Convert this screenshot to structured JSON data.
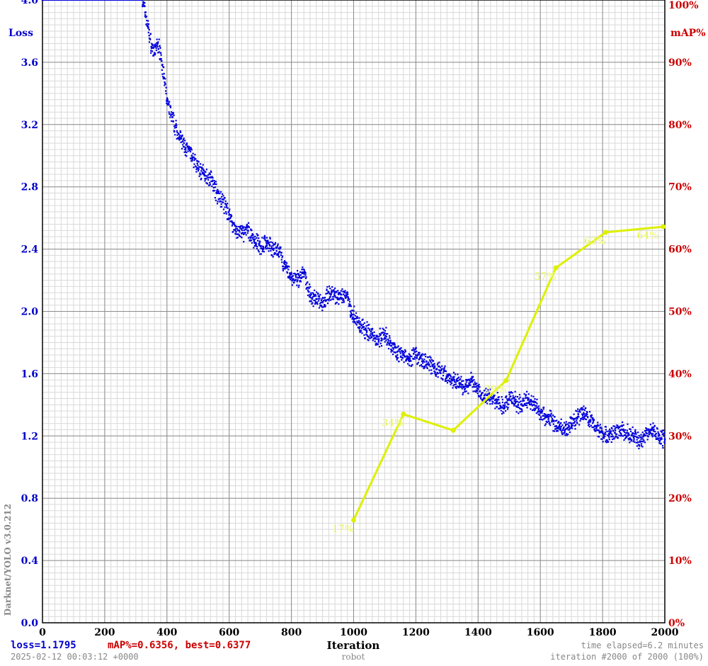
{
  "chart_data": {
    "type": "scatter",
    "xlabel": "Iteration",
    "subtitle": "robot",
    "y_left_label": "Loss",
    "y_right_label": "mAP%",
    "vertical_label": "Darknet/YOLO v3.0.212",
    "xlim": [
      0,
      2000
    ],
    "ylim_left": [
      0,
      4.0
    ],
    "ylim_right": [
      0,
      100
    ],
    "grid": true,
    "x_ticks": [
      "0",
      "200",
      "400",
      "600",
      "800",
      "1000",
      "1200",
      "1400",
      "1600",
      "1800",
      "2000"
    ],
    "y_left_ticks": [
      "0.0",
      "0.4",
      "0.8",
      "1.2",
      "1.6",
      "2.0",
      "2.4",
      "2.8",
      "3.2",
      "3.6",
      "4.0"
    ],
    "y_right_ticks": [
      "0%",
      "10%",
      "20%",
      "30%",
      "40%",
      "50%",
      "60%",
      "70%",
      "80%",
      "90%",
      "100%"
    ],
    "loss_series": {
      "name": "loss",
      "color": "#0000dd",
      "x": [
        0,
        320,
        330,
        340,
        350,
        360,
        370,
        380,
        390,
        400,
        420,
        440,
        460,
        480,
        500,
        520,
        540,
        560,
        580,
        600,
        620,
        640,
        660,
        680,
        700,
        720,
        740,
        760,
        780,
        800,
        820,
        840,
        860,
        880,
        900,
        920,
        940,
        960,
        980,
        990,
        1000,
        1020,
        1040,
        1060,
        1080,
        1100,
        1120,
        1140,
        1160,
        1180,
        1200,
        1220,
        1240,
        1260,
        1280,
        1300,
        1320,
        1340,
        1360,
        1380,
        1400,
        1420,
        1440,
        1460,
        1480,
        1500,
        1520,
        1540,
        1560,
        1580,
        1600,
        1620,
        1640,
        1660,
        1680,
        1700,
        1720,
        1740,
        1760,
        1780,
        1800,
        1820,
        1840,
        1860,
        1880,
        1900,
        1920,
        1940,
        1960,
        1980,
        2000
      ],
      "values": [
        4.0,
        4.0,
        3.92,
        3.82,
        3.7,
        3.66,
        3.72,
        3.66,
        3.5,
        3.35,
        3.22,
        3.12,
        3.05,
        3.0,
        2.92,
        2.88,
        2.86,
        2.76,
        2.7,
        2.62,
        2.52,
        2.5,
        2.52,
        2.46,
        2.42,
        2.44,
        2.4,
        2.38,
        2.28,
        2.22,
        2.2,
        2.25,
        2.1,
        2.08,
        2.06,
        2.12,
        2.1,
        2.08,
        2.12,
        2.0,
        1.98,
        1.9,
        1.88,
        1.85,
        1.82,
        1.86,
        1.78,
        1.74,
        1.72,
        1.7,
        1.72,
        1.68,
        1.66,
        1.64,
        1.62,
        1.58,
        1.56,
        1.54,
        1.52,
        1.55,
        1.5,
        1.46,
        1.45,
        1.42,
        1.38,
        1.44,
        1.42,
        1.4,
        1.44,
        1.4,
        1.36,
        1.32,
        1.3,
        1.26,
        1.24,
        1.28,
        1.32,
        1.34,
        1.3,
        1.26,
        1.22,
        1.2,
        1.22,
        1.24,
        1.22,
        1.2,
        1.16,
        1.22,
        1.24,
        1.2,
        1.18
      ]
    },
    "map_series": {
      "name": "mAP%",
      "color": "#ddf000",
      "x": [
        1000,
        1160,
        1320,
        1490,
        1650,
        1810,
        1995
      ],
      "values": [
        16.5,
        33.5,
        30.9,
        38.9,
        57.0,
        62.7,
        63.6
      ],
      "labels": [
        "17%",
        "34%",
        "",
        "39%",
        "57%",
        "63%",
        "64%"
      ]
    }
  },
  "footer": {
    "loss_text": "loss=1.1795",
    "map_text": "mAP%=0.6356,  best=0.6377",
    "timestamp": "2025-02-12 00:03:12 +0000",
    "time_elapsed": "time elapsed=6.2 minutes",
    "iteration_text": "iteration #2000 of 2000 (100%)"
  },
  "colors": {
    "loss": "#0000cc",
    "map": "#cc0000",
    "grid_major": "#8c8c8c",
    "grid_minor": "#d9d9d9",
    "map_line": "#ddf000"
  }
}
